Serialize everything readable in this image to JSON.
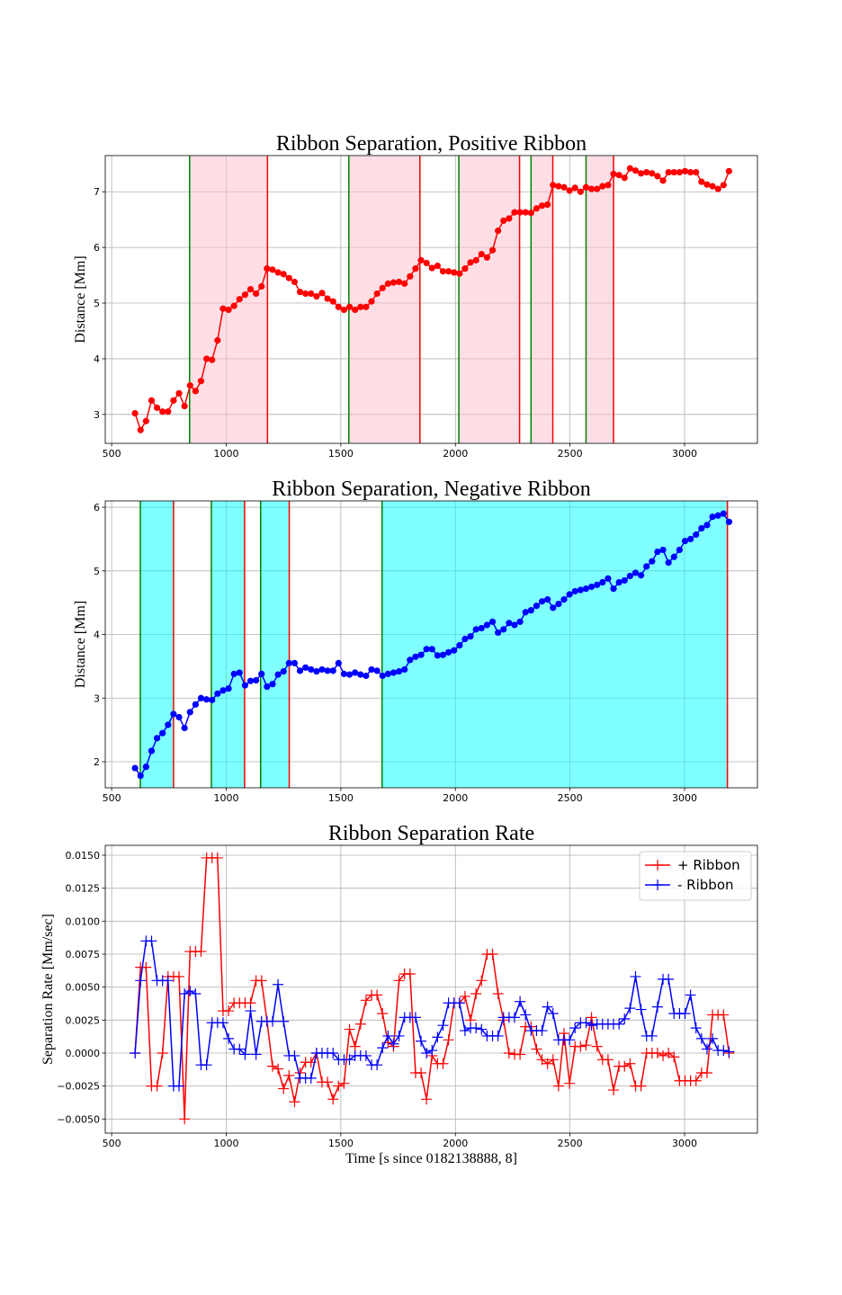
{
  "chart_data": [
    {
      "type": "line",
      "title": "Ribbon Separation, Positive Ribbon",
      "ylabel": "Distance [Mm]",
      "x": [
        602,
        626,
        650,
        674,
        698,
        722,
        746,
        770,
        794,
        818,
        842,
        866,
        890,
        914,
        938,
        962,
        986,
        1010,
        1034,
        1058,
        1082,
        1106,
        1130,
        1154,
        1178,
        1202,
        1226,
        1250,
        1274,
        1298,
        1322,
        1346,
        1370,
        1394,
        1418,
        1442,
        1466,
        1490,
        1514,
        1538,
        1562,
        1586,
        1610,
        1634,
        1658,
        1682,
        1706,
        1730,
        1754,
        1778,
        1802,
        1826,
        1850,
        1874,
        1898,
        1922,
        1946,
        1970,
        1994,
        2018,
        2042,
        2066,
        2090,
        2114,
        2138,
        2162,
        2186,
        2210,
        2234,
        2258,
        2282,
        2306,
        2330,
        2354,
        2378,
        2402,
        2426,
        2450,
        2474,
        2498,
        2522,
        2546,
        2570,
        2594,
        2618,
        2642,
        2666,
        2690,
        2714,
        2738,
        2762,
        2786,
        2810,
        2834,
        2858,
        2882,
        2906,
        2930,
        2954,
        2978,
        3002,
        3026,
        3050,
        3074,
        3098,
        3122,
        3146,
        3170,
        3194
      ],
      "series": [
        {
          "color": "#ff0000",
          "marker": "o",
          "values": [
            3.02,
            2.72,
            2.88,
            3.25,
            3.12,
            3.05,
            3.05,
            3.25,
            3.38,
            3.15,
            3.52,
            3.42,
            3.6,
            4.0,
            3.98,
            4.33,
            4.9,
            4.88,
            4.95,
            5.07,
            5.15,
            5.25,
            5.17,
            5.3,
            5.62,
            5.6,
            5.55,
            5.52,
            5.45,
            5.38,
            5.2,
            5.17,
            5.17,
            5.12,
            5.18,
            5.08,
            5.03,
            4.93,
            4.88,
            4.93,
            4.88,
            4.93,
            4.93,
            5.03,
            5.17,
            5.27,
            5.35,
            5.37,
            5.38,
            5.35,
            5.48,
            5.62,
            5.77,
            5.72,
            5.63,
            5.67,
            5.57,
            5.57,
            5.55,
            5.53,
            5.62,
            5.73,
            5.77,
            5.88,
            5.82,
            5.95,
            6.3,
            6.48,
            6.52,
            6.63,
            6.63,
            6.63,
            6.62,
            6.7,
            6.75,
            6.77,
            7.12,
            7.1,
            7.08,
            7.02,
            7.07,
            7.0,
            7.08,
            7.05,
            7.05,
            7.1,
            7.12,
            7.32,
            7.3,
            7.25,
            7.42,
            7.38,
            7.33,
            7.35,
            7.33,
            7.28,
            7.2,
            7.35,
            7.35,
            7.35,
            7.37,
            7.35,
            7.35,
            7.18,
            7.13,
            7.1,
            7.05,
            7.12,
            7.37
          ]
        }
      ],
      "spans": [
        [
          840,
          1180
        ],
        [
          1535,
          1845
        ],
        [
          2015,
          2280
        ],
        [
          2330,
          2425
        ],
        [
          2570,
          2690
        ]
      ],
      "span_color": "rgba(255,192,203,0.5)",
      "span_start_color": "#008000",
      "span_end_color": "#ff0000",
      "xlim": [
        472,
        3318
      ],
      "ylim": [
        2.48,
        7.65
      ],
      "xticks": [
        500,
        1000,
        1500,
        2000,
        2500,
        3000
      ],
      "yticks": [
        3,
        4,
        5,
        6,
        7
      ],
      "grid": true
    },
    {
      "type": "line",
      "title": "Ribbon Separation, Negative Ribbon",
      "ylabel": "Distance [Mm]",
      "x": [
        602,
        626,
        650,
        674,
        698,
        722,
        746,
        770,
        794,
        818,
        842,
        866,
        890,
        914,
        938,
        962,
        986,
        1010,
        1034,
        1058,
        1082,
        1106,
        1130,
        1154,
        1178,
        1202,
        1226,
        1250,
        1274,
        1298,
        1322,
        1346,
        1370,
        1394,
        1418,
        1442,
        1466,
        1490,
        1514,
        1538,
        1562,
        1586,
        1610,
        1634,
        1658,
        1682,
        1706,
        1730,
        1754,
        1778,
        1802,
        1826,
        1850,
        1874,
        1898,
        1922,
        1946,
        1970,
        1994,
        2018,
        2042,
        2066,
        2090,
        2114,
        2138,
        2162,
        2186,
        2210,
        2234,
        2258,
        2282,
        2306,
        2330,
        2354,
        2378,
        2402,
        2426,
        2450,
        2474,
        2498,
        2522,
        2546,
        2570,
        2594,
        2618,
        2642,
        2666,
        2690,
        2714,
        2738,
        2762,
        2786,
        2810,
        2834,
        2858,
        2882,
        2906,
        2930,
        2954,
        2978,
        3002,
        3026,
        3050,
        3074,
        3098,
        3122,
        3146,
        3170,
        3194
      ],
      "series": [
        {
          "color": "#0000ff",
          "marker": "o",
          "values": [
            1.9,
            1.78,
            1.92,
            2.17,
            2.37,
            2.45,
            2.58,
            2.75,
            2.7,
            2.53,
            2.78,
            2.9,
            3.0,
            2.98,
            2.97,
            3.07,
            3.12,
            3.15,
            3.38,
            3.4,
            3.2,
            3.27,
            3.28,
            3.38,
            3.18,
            3.22,
            3.37,
            3.42,
            3.55,
            3.55,
            3.43,
            3.48,
            3.45,
            3.42,
            3.45,
            3.43,
            3.43,
            3.55,
            3.38,
            3.37,
            3.4,
            3.37,
            3.35,
            3.45,
            3.43,
            3.35,
            3.38,
            3.4,
            3.42,
            3.45,
            3.6,
            3.65,
            3.68,
            3.77,
            3.77,
            3.67,
            3.68,
            3.72,
            3.75,
            3.83,
            3.93,
            3.97,
            4.08,
            4.1,
            4.15,
            4.2,
            4.03,
            4.08,
            4.18,
            4.15,
            4.2,
            4.35,
            4.38,
            4.45,
            4.52,
            4.55,
            4.42,
            4.48,
            4.55,
            4.63,
            4.68,
            4.7,
            4.72,
            4.75,
            4.78,
            4.82,
            4.88,
            4.72,
            4.82,
            4.85,
            4.92,
            4.97,
            4.93,
            5.07,
            5.15,
            5.3,
            5.33,
            5.13,
            5.22,
            5.33,
            5.47,
            5.5,
            5.57,
            5.67,
            5.72,
            5.85,
            5.87,
            5.9,
            5.77
          ]
        }
      ],
      "spans": [
        [
          625,
          770
        ],
        [
          935,
          1080
        ],
        [
          1150,
          1275
        ],
        [
          1680,
          3187
        ]
      ],
      "span_color": "rgba(0,255,255,0.5)",
      "span_start_color": "#008000",
      "span_end_color": "#ff0000",
      "xlim": [
        472,
        3318
      ],
      "ylim": [
        1.59,
        6.1
      ],
      "xticks": [
        500,
        1000,
        1500,
        2000,
        2500,
        3000
      ],
      "yticks": [
        2,
        3,
        4,
        5,
        6
      ],
      "grid": true
    },
    {
      "type": "line",
      "title": "Ribbon Separation Rate",
      "ylabel": "Separation Rate [Mm/sec]",
      "xlabel": "Time [s since 0182138888, 8]",
      "x": [
        602,
        626,
        650,
        674,
        698,
        722,
        746,
        770,
        794,
        818,
        842,
        866,
        890,
        914,
        938,
        962,
        986,
        1010,
        1034,
        1058,
        1082,
        1106,
        1130,
        1154,
        1178,
        1202,
        1226,
        1250,
        1274,
        1298,
        1322,
        1346,
        1370,
        1394,
        1418,
        1442,
        1466,
        1490,
        1514,
        1538,
        1562,
        1586,
        1610,
        1634,
        1658,
        1682,
        1706,
        1730,
        1754,
        1778,
        1802,
        1826,
        1850,
        1874,
        1898,
        1922,
        1946,
        1970,
        1994,
        2018,
        2042,
        2066,
        2090,
        2114,
        2138,
        2162,
        2186,
        2210,
        2234,
        2258,
        2282,
        2306,
        2330,
        2354,
        2378,
        2402,
        2426,
        2450,
        2474,
        2498,
        2522,
        2546,
        2570,
        2594,
        2618,
        2642,
        2666,
        2690,
        2714,
        2738,
        2762,
        2786,
        2810,
        2834,
        2858,
        2882,
        2906,
        2930,
        2954,
        2978,
        3002,
        3026,
        3050,
        3074,
        3098,
        3122,
        3146,
        3170,
        3194
      ],
      "series": [
        {
          "name": "+ Ribbon",
          "color": "#ff0000",
          "marker": "+",
          "values": [
            0,
            0.0065,
            0.0065,
            -0.0025,
            -0.0025,
            0,
            0.0058,
            0.0058,
            0.0058,
            -0.005,
            0.0077,
            0.0077,
            0.0077,
            0.0148,
            0.0148,
            0.0148,
            0.0032,
            0.0032,
            0.0038,
            0.0038,
            0.0038,
            0.0038,
            0.0055,
            0.0055,
            0.0024,
            -0.001,
            -0.0012,
            -0.0027,
            -0.0017,
            -0.0037,
            -0.0015,
            -0.0007,
            -0.0007,
            0,
            -0.0022,
            -0.0022,
            -0.0035,
            -0.0025,
            -0.0023,
            0.0018,
            0.0005,
            0.0022,
            0.004,
            0.0044,
            0.0044,
            0.003,
            0.0008,
            0.0005,
            0.0055,
            0.006,
            0.006,
            -0.0015,
            -0.0015,
            -0.0035,
            -0.0002,
            -0.0008,
            -0.0008,
            0.001,
            0.0038,
            0.0038,
            0.0043,
            0.0025,
            0.0045,
            0.0055,
            0.0075,
            0.0075,
            0.0045,
            0.0025,
            0,
            -0.0001,
            -0.0001,
            0.002,
            0.002,
            0.0003,
            -0.0005,
            -0.0008,
            -0.0005,
            -0.0025,
            0.0015,
            -0.0023,
            0.0005,
            0.0005,
            0.0006,
            0.0027,
            0.0005,
            -0.0005,
            -0.0005,
            -0.0028,
            -0.001,
            -0.001,
            -0.0008,
            -0.0025,
            -0.0025,
            0,
            0,
            0,
            -0.0002,
            0,
            -0.0003,
            -0.0021,
            -0.0021,
            -0.0021,
            -0.0021,
            -0.0015,
            -0.0015,
            0.0029,
            0.0029,
            0.0029,
            0
          ]
        },
        {
          "name": "- Ribbon",
          "color": "#0000ff",
          "marker": "+",
          "values": [
            0,
            0.0055,
            0.0085,
            0.0085,
            0.0055,
            0.0055,
            0.0055,
            -0.0025,
            -0.0025,
            0.0045,
            0.0047,
            0.0045,
            -0.0009,
            -0.0009,
            0.0023,
            0.0023,
            0.0023,
            0.0011,
            0.0003,
            0.0003,
            -0.0001,
            0.0032,
            -0.0001,
            0.0024,
            0.0024,
            0.0024,
            0.0052,
            0.0024,
            -0.0002,
            -0.0002,
            -0.0019,
            -0.0019,
            -0.0019,
            0,
            0,
            0,
            0,
            -0.0005,
            -0.0005,
            -0.0005,
            -0.0002,
            -0.0002,
            -0.0002,
            -0.0009,
            -0.0009,
            0.0004,
            0.0013,
            0.0007,
            0.0013,
            0.0027,
            0.0027,
            0.0027,
            0.0009,
            0,
            0.0002,
            0.0012,
            0.0021,
            0.0038,
            0.0038,
            0.0038,
            0.0017,
            0.0019,
            0.0019,
            0.0018,
            0.0013,
            0.0013,
            0.0013,
            0.0027,
            0.0027,
            0.0027,
            0.0039,
            0.0029,
            0.0017,
            0.0017,
            0.0017,
            0.0035,
            0.003,
            0.001,
            0.001,
            0.001,
            0.0019,
            0.0023,
            0.0023,
            0.0021,
            0.0022,
            0.0022,
            0.0022,
            0.0022,
            0.0022,
            0.0026,
            0.0034,
            0.0058,
            0.0033,
            0.0013,
            0.0013,
            0.0035,
            0.0056,
            0.0056,
            0.003,
            0.003,
            0.003,
            0.0044,
            0.0019,
            0.0011,
            0.0003,
            0.0011,
            0.0002,
            0.0002,
            0.0001
          ]
        }
      ],
      "xlim": [
        472,
        3318
      ],
      "ylim": [
        -0.00607,
        0.01575
      ],
      "xticks": [
        500,
        1000,
        1500,
        2000,
        2500,
        3000
      ],
      "yticks": [
        {
          "value": -0.005,
          "label": "−0.0050"
        },
        {
          "value": -0.0025,
          "label": "−0.0025"
        },
        {
          "value": 0,
          "label": "0.0000"
        },
        {
          "value": 0.0025,
          "label": "0.0025"
        },
        {
          "value": 0.005,
          "label": "0.0050"
        },
        {
          "value": 0.0075,
          "label": "0.0075"
        },
        {
          "value": 0.01,
          "label": "0.0100"
        },
        {
          "value": 0.0125,
          "label": "0.0125"
        },
        {
          "value": 0.015,
          "label": "0.0150"
        }
      ],
      "grid": true,
      "legend": "upper right"
    }
  ]
}
